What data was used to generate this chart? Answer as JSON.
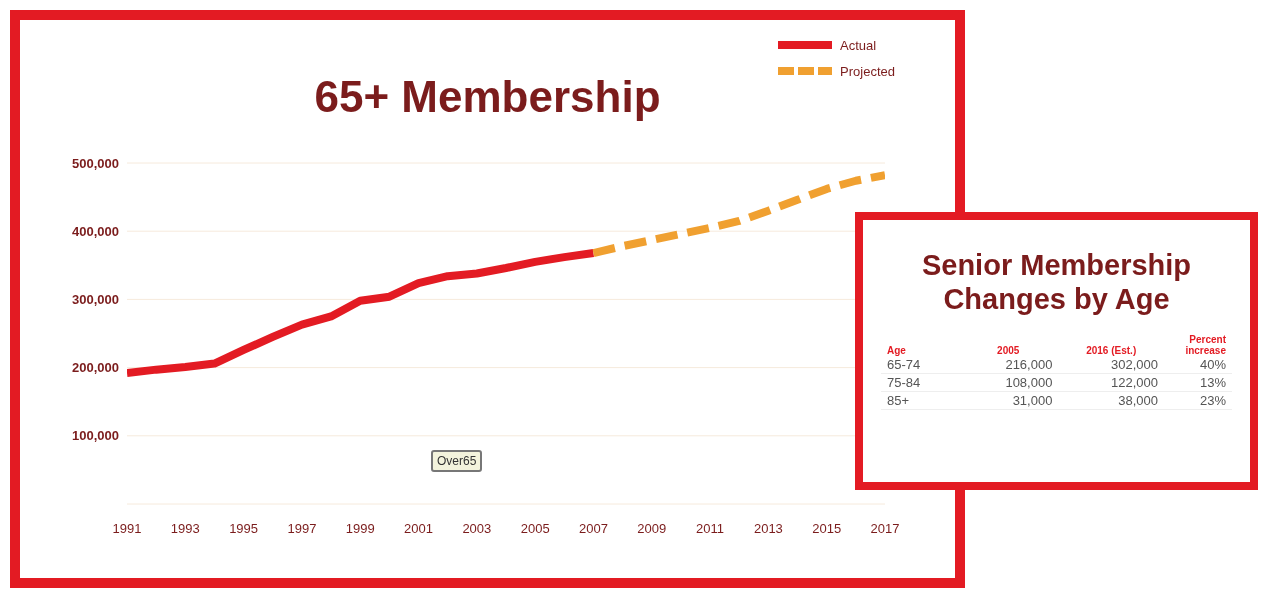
{
  "chart_data": [
    {
      "type": "line",
      "title": "65+ Membership",
      "xlim": [
        1991,
        2017
      ],
      "xticks": [
        1991,
        1993,
        1995,
        1997,
        1999,
        2001,
        2003,
        2005,
        2007,
        2009,
        2011,
        2013,
        2015,
        2017
      ],
      "ylim": [
        0,
        500000
      ],
      "yticks": [
        {
          "value": 100000,
          "label": "100,000"
        },
        {
          "value": 200000,
          "label": "200,000"
        },
        {
          "value": 300000,
          "label": "300,000"
        },
        {
          "value": 400000,
          "label": "400,000"
        },
        {
          "value": 500000,
          "label": "500,000"
        }
      ],
      "grid": "y",
      "legend": "top right",
      "annotations": [
        "Over65"
      ],
      "series": [
        {
          "name": "Actual",
          "color": "#e31b23",
          "line_style": "solid",
          "x": [
            1991,
            1992,
            1993,
            1994,
            1995,
            1996,
            1997,
            1998,
            1999,
            2000,
            2001,
            2002,
            2003,
            2004,
            2005,
            2006,
            2007
          ],
          "values": [
            192000,
            197000,
            201000,
            206000,
            226000,
            245000,
            263000,
            275000,
            298000,
            304000,
            324000,
            334000,
            338000,
            346000,
            355000,
            362000,
            368000
          ]
        },
        {
          "name": "Projected",
          "color": "#f0a030",
          "line_style": "dashed",
          "x": [
            2007,
            2008,
            2009,
            2010,
            2011,
            2012,
            2013,
            2014,
            2015,
            2016,
            2017
          ],
          "values": [
            368000,
            378000,
            387000,
            396000,
            405000,
            415000,
            430000,
            446000,
            462000,
            474000,
            482000
          ]
        }
      ]
    },
    {
      "type": "other",
      "title": "Senior Membership Changes by Age",
      "xlabel": "Age",
      "categories": [
        "65-74",
        "75-84",
        "85+"
      ],
      "series": [
        {
          "name": "2005",
          "values": [
            216000,
            108000,
            31000
          ],
          "value_labels": [
            "216,000",
            "108,000",
            "31,000"
          ]
        },
        {
          "name": "2016 (Est.)",
          "values": [
            302000,
            122000,
            38000
          ],
          "value_labels": [
            "302,000",
            "122,000",
            "38,000"
          ]
        },
        {
          "name": "Percent increase",
          "values": [
            40,
            13,
            23
          ],
          "value_labels": [
            "40%",
            "13%",
            "23%"
          ]
        }
      ]
    }
  ]
}
